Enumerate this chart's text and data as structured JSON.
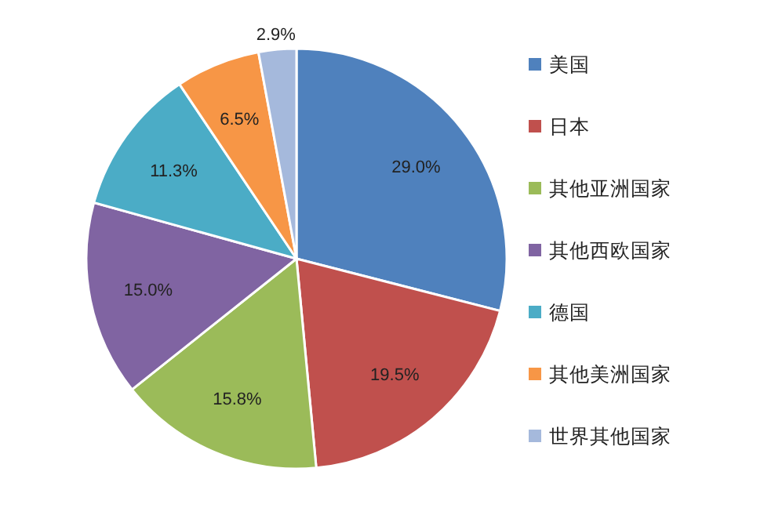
{
  "chart_data": {
    "type": "pie",
    "categories": [
      "美国",
      "日本",
      "其他亚洲国家",
      "其他西欧国家",
      "德国",
      "其他美洲国家",
      "世界其他国家"
    ],
    "values": [
      29.0,
      19.5,
      15.8,
      15.0,
      11.3,
      6.5,
      2.9
    ],
    "value_labels": [
      "29.0%",
      "19.5%",
      "15.8%",
      "15.0%",
      "11.3%",
      "6.5%",
      "2.9%"
    ],
    "colors": [
      "#4f81bd",
      "#c0504d",
      "#9bbb59",
      "#8064a2",
      "#4bacc6",
      "#f79646",
      "#a5b9dc"
    ],
    "legend": "right"
  }
}
